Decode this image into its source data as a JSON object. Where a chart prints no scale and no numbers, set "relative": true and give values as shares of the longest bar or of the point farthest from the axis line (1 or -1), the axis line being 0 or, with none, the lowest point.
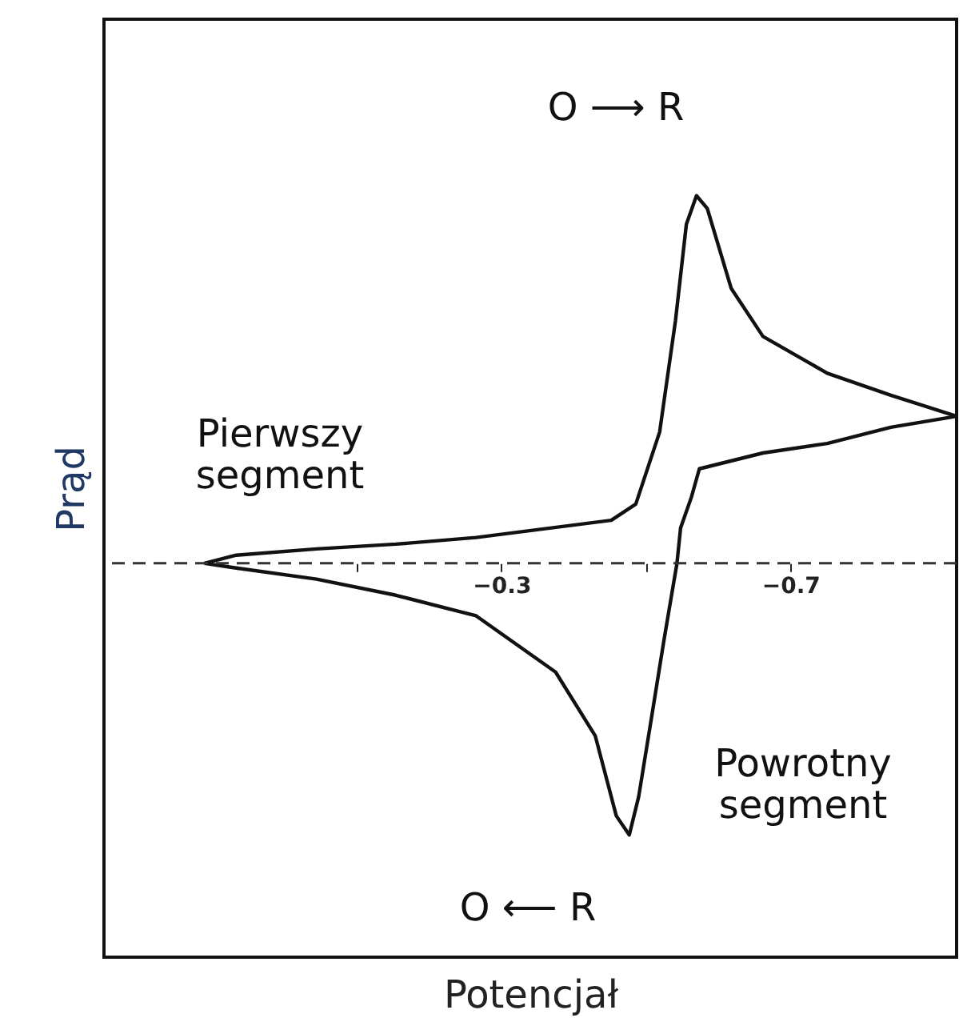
{
  "chart_data": {
    "type": "line",
    "relative": true,
    "xlabel": "Potencjał",
    "ylabel": "Prąd",
    "xlim": [
      0.25,
      -0.93
    ],
    "xticks": [
      {
        "value": -0.1,
        "label": null
      },
      {
        "value": -0.3,
        "label": "−0.3"
      },
      {
        "value": -0.5,
        "label": null
      },
      {
        "value": -0.7,
        "label": "−0.7"
      }
    ],
    "tick_labels": "x",
    "grid": false,
    "marker": "none",
    "line_style": "solid",
    "series": [
      {
        "color": "#111111",
        "x": [
          0.111,
          0.067,
          -0.044,
          -0.154,
          -0.265,
          -0.452,
          -0.486,
          -0.519,
          -0.541,
          -0.556,
          -0.57,
          -0.585,
          -0.618,
          -0.662,
          -0.751,
          -0.839,
          -0.93
        ],
        "values": [
          0.0,
          0.022,
          0.039,
          0.052,
          0.07,
          0.117,
          0.161,
          0.357,
          0.661,
          0.922,
          1.0,
          0.965,
          0.748,
          0.617,
          0.517,
          0.457,
          0.4
        ]
      },
      {
        "color": "#111111",
        "x": [
          -0.93,
          -0.839,
          -0.751,
          -0.662,
          -0.574,
          -0.563,
          -0.548,
          -0.543,
          -0.525,
          -0.508,
          -0.49,
          -0.477,
          -0.459,
          -0.43,
          -0.375,
          -0.265,
          -0.154,
          -0.044,
          0.067,
          0.111
        ],
        "values": [
          0.4,
          0.37,
          0.326,
          0.3,
          0.257,
          0.18,
          0.096,
          0.0,
          -0.209,
          -0.417,
          -0.635,
          -0.739,
          -0.687,
          -0.47,
          -0.296,
          -0.143,
          -0.087,
          -0.043,
          -0.013,
          0.0
        ]
      }
    ],
    "ref_lines": [
      {
        "axis": "y",
        "value": 0,
        "color": "#333333",
        "line_style": "dashed"
      }
    ],
    "annotations": [
      "O ⟶ R",
      "Pierwszy\nsegment",
      "Powrotny\nsegment",
      "O ⟵ R"
    ]
  }
}
